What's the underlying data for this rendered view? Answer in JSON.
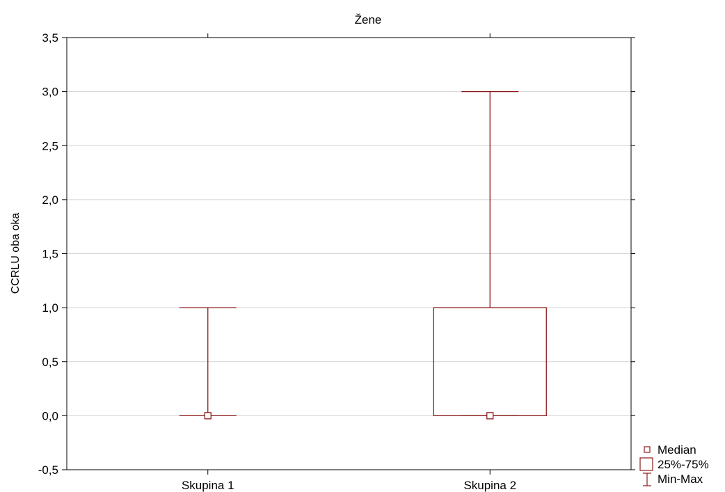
{
  "chart_data": {
    "type": "boxplot",
    "title": "Žene",
    "ylabel": "CCRLU oba oka",
    "xlabel": "",
    "ylim": [
      -0.5,
      3.5
    ],
    "yticks": [
      "-0,5",
      "0,0",
      "0,5",
      "1,0",
      "1,5",
      "2,0",
      "2,5",
      "3,0",
      "3,5"
    ],
    "ytick_values": [
      -0.5,
      0.0,
      0.5,
      1.0,
      1.5,
      2.0,
      2.5,
      3.0,
      3.5
    ],
    "grid": true,
    "categories": [
      "Skupina 1",
      "Skupina 2"
    ],
    "groups": [
      {
        "category": "Skupina 1",
        "median": 0.0,
        "q1": 0.0,
        "q3": 0.0,
        "min": 0.0,
        "max": 1.0
      },
      {
        "category": "Skupina 2",
        "median": 0.0,
        "q1": 0.0,
        "q3": 1.0,
        "min": 0.0,
        "max": 3.0
      }
    ],
    "legend": {
      "placement": "bottom-right",
      "items": [
        {
          "label": "Median",
          "symbol": "square-marker"
        },
        {
          "label": "25%-75%",
          "symbol": "box"
        },
        {
          "label": "Min-Max",
          "symbol": "whisker"
        }
      ]
    },
    "colors": {
      "series": "#8B1A1A",
      "grid": "#d3d3d3",
      "axis": "#000000"
    }
  }
}
